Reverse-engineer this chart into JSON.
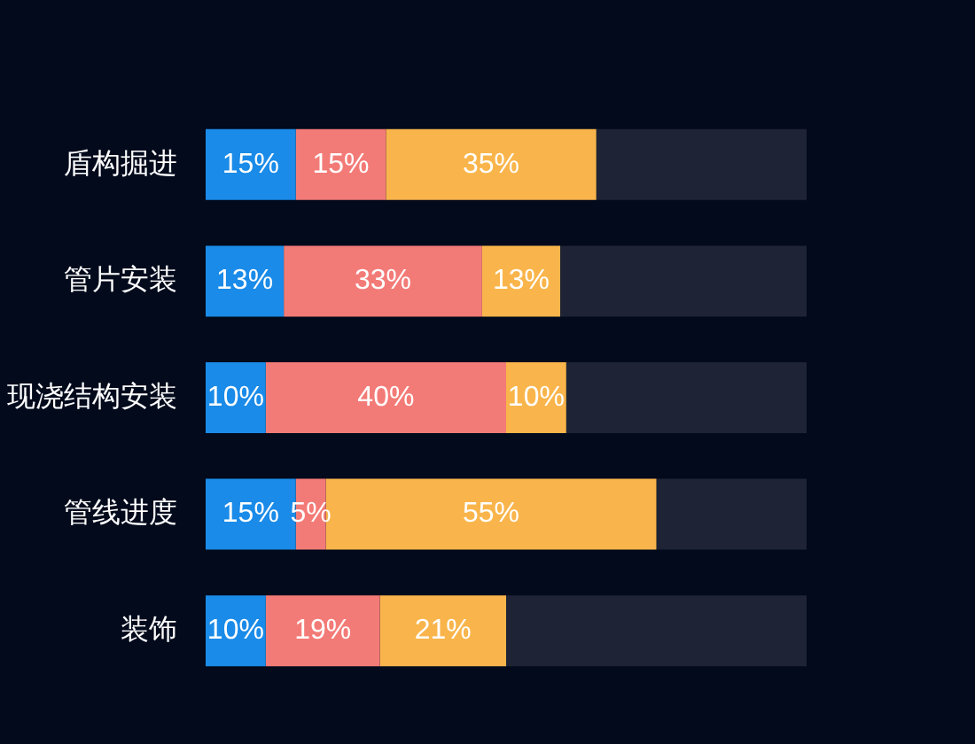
{
  "chart_data": {
    "type": "bar",
    "orientation": "horizontal",
    "stacked": true,
    "categories": [
      "盾构掘进",
      "管片安装",
      "现浇结构安装",
      "管线进度",
      "装饰"
    ],
    "series": [
      {
        "color": "#1a8be8",
        "values": [
          15,
          13,
          10,
          15,
          10
        ],
        "value_labels": [
          "15%",
          "13%",
          "10%",
          "15%",
          "10%"
        ]
      },
      {
        "color": "#f37b77",
        "values": [
          15,
          33,
          40,
          5,
          19
        ],
        "value_labels": [
          "15%",
          "33%",
          "40%",
          "5%",
          "19%"
        ]
      },
      {
        "color": "#f9b54b",
        "values": [
          35,
          13,
          10,
          55,
          21
        ],
        "value_labels": [
          "35%",
          "13%",
          "10%",
          "55%",
          "21%"
        ]
      },
      {
        "color": "#1e2435",
        "values": [
          35,
          41,
          40,
          25,
          50
        ]
      }
    ],
    "tick_labels": "y",
    "legend": false
  }
}
